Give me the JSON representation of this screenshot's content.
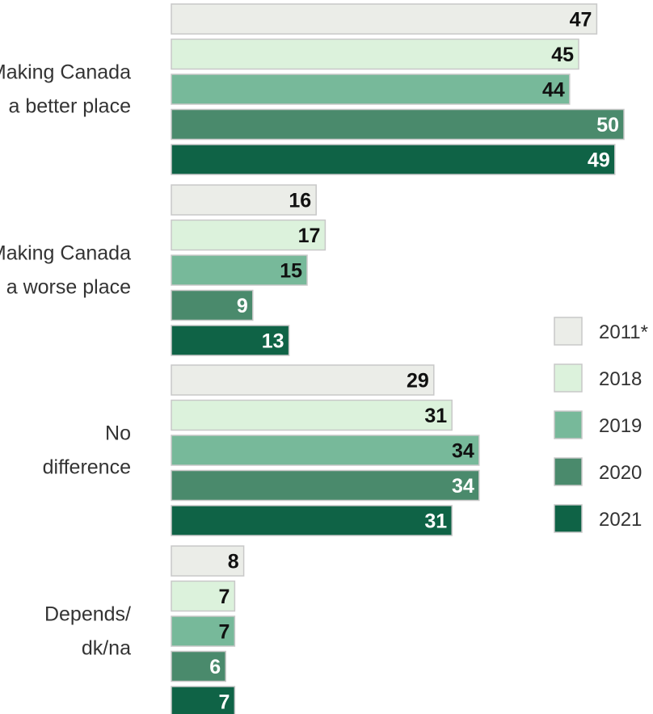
{
  "chart_data": {
    "type": "bar",
    "orientation": "horizontal",
    "categories": [
      [
        "Making Canada",
        "a better place"
      ],
      [
        "Making Canada",
        "a worse place"
      ],
      [
        "No",
        "difference"
      ],
      [
        "Depends/",
        "dk/na"
      ]
    ],
    "series": [
      {
        "name": "2011*",
        "color": "#ebede8",
        "label_color": "#111111",
        "values": [
          47,
          16,
          29,
          8
        ]
      },
      {
        "name": "2018",
        "color": "#dcf2dc",
        "label_color": "#111111",
        "values": [
          45,
          17,
          31,
          7
        ]
      },
      {
        "name": "2019",
        "color": "#77b99a",
        "label_color": "#111111",
        "values": [
          44,
          15,
          34,
          7
        ]
      },
      {
        "name": "2020",
        "color": "#4a8a6c",
        "label_color": "#ffffff",
        "values": [
          50,
          9,
          34,
          6
        ]
      },
      {
        "name": "2021",
        "color": "#0f6346",
        "label_color": "#ffffff",
        "values": [
          49,
          13,
          31,
          7
        ]
      }
    ],
    "xlim": [
      0,
      50
    ],
    "grid": false,
    "legend_position": "right",
    "title": "",
    "xlabel": "",
    "ylabel": ""
  }
}
